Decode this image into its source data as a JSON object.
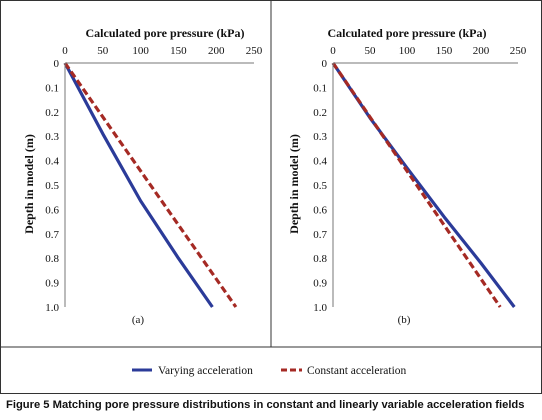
{
  "figure": {
    "caption_label": "Figure 5",
    "caption_text": "Matching pore pressure distributions in constant and linearly variable acceleration fields",
    "legend": {
      "placement": "bottom",
      "entries": [
        {
          "label": "Varying acceleration",
          "color": "#2b3b99",
          "style": "solid"
        },
        {
          "label": "Constant acceleration",
          "color": "#a52a24",
          "style": "dashed"
        }
      ]
    }
  },
  "chart_data": [
    {
      "type": "line",
      "panel_label": "(a)",
      "xlabel": "Calculated pore pressure (kPa)",
      "ylabel": "Depth in model (m)",
      "xlim": [
        0,
        250
      ],
      "ylim": [
        0,
        1.0
      ],
      "y_inverted": true,
      "x_axis_position": "top",
      "x_ticks": [
        "0",
        "50",
        "100",
        "150",
        "200",
        "250"
      ],
      "y_ticks": [
        "0",
        "0.1",
        "0.2",
        "0.3",
        "0.4",
        "0.5",
        "0.6",
        "0.7",
        "0.8",
        "0.9",
        "1.0"
      ],
      "grid": false,
      "series": [
        {
          "name": "Varying acceleration",
          "color": "#2b3b99",
          "dash": false,
          "points": [
            [
              0,
              0
            ],
            [
              50,
              0.29
            ],
            [
              100,
              0.565
            ],
            [
              150,
              0.8
            ],
            [
              195,
              1.0
            ]
          ]
        },
        {
          "name": "Constant acceleration",
          "color": "#a52a24",
          "dash": true,
          "points": [
            [
              0,
              0
            ],
            [
              226,
              1.0
            ]
          ]
        }
      ]
    },
    {
      "type": "line",
      "panel_label": "(b)",
      "xlabel": "Calculated pore pressure (kPa)",
      "ylabel": "Depth in model (m)",
      "xlim": [
        0,
        250
      ],
      "ylim": [
        0,
        1.0
      ],
      "y_inverted": true,
      "x_axis_position": "top",
      "x_ticks": [
        "0",
        "50",
        "100",
        "150",
        "200",
        "250"
      ],
      "y_ticks": [
        "0",
        "0.1",
        "0.2",
        "0.3",
        "0.4",
        "0.5",
        "0.6",
        "0.7",
        "0.8",
        "0.9",
        "1.0"
      ],
      "grid": false,
      "series": [
        {
          "name": "Varying acceleration",
          "color": "#2b3b99",
          "dash": false,
          "points": [
            [
              0,
              0
            ],
            [
              50,
              0.225
            ],
            [
              100,
              0.43
            ],
            [
              150,
              0.63
            ],
            [
              200,
              0.82
            ],
            [
              245,
              1.0
            ]
          ]
        },
        {
          "name": "Constant acceleration",
          "color": "#a52a24",
          "dash": true,
          "points": [
            [
              0,
              0
            ],
            [
              226,
              1.0
            ]
          ]
        }
      ]
    }
  ]
}
